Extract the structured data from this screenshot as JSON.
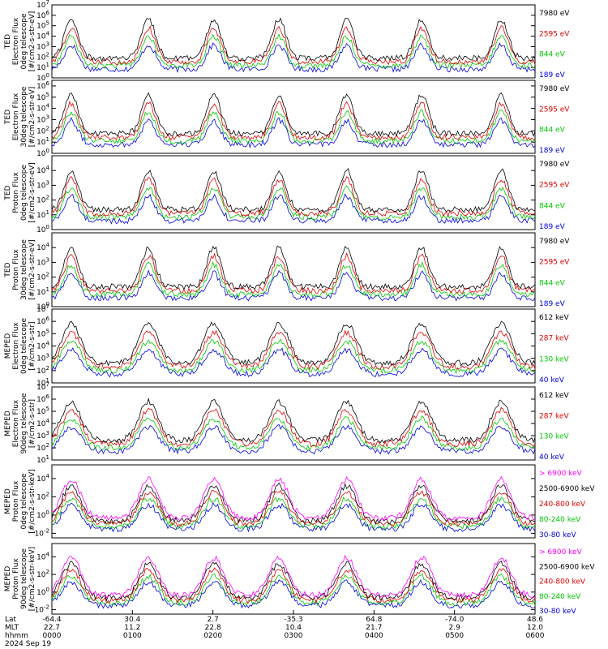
{
  "figure": {
    "date": "2024 Sep 19",
    "xaxis_row_labels": [
      "Lat",
      "MLT",
      "hhmm"
    ],
    "xticks": {
      "lat": [
        "-64.4",
        "30.4",
        "2.7",
        "-35.3",
        "64.8",
        "-74.0",
        "48.6"
      ],
      "mlt": [
        "22.7",
        "11.2",
        "22.8",
        "10.4",
        "21.7",
        "2.9",
        "12.0"
      ],
      "hhmm": [
        "0000",
        "0100",
        "0200",
        "0300",
        "0400",
        "0500",
        "0600"
      ]
    }
  },
  "chart_data": [
    {
      "type": "line",
      "ylabel_lines": [
        "TED",
        "Electron Flux",
        "0deg telescope",
        "[#/cm2-s-str-eV]"
      ],
      "ytick_exponents": [
        0,
        1,
        2,
        3,
        4,
        5,
        6,
        7
      ],
      "ylim_log10": [
        0,
        7
      ],
      "series": [
        {
          "name": "7980 eV",
          "color": "#000000"
        },
        {
          "name": "2595 eV",
          "color": "#e00000"
        },
        {
          "name": "844 eV",
          "color": "#00c800"
        },
        {
          "name": "189 eV",
          "color": "#0000e0"
        }
      ]
    },
    {
      "type": "line",
      "ylabel_lines": [
        "TED",
        "Electron Flux",
        "30deg telescope",
        "[#/cm2-s-str-eV]"
      ],
      "ytick_exponents": [
        0,
        1,
        2,
        3,
        4,
        5,
        6
      ],
      "ylim_log10": [
        0,
        6.5
      ],
      "series": [
        {
          "name": "7980 eV",
          "color": "#000000"
        },
        {
          "name": "2595 eV",
          "color": "#e00000"
        },
        {
          "name": "844 eV",
          "color": "#00c800"
        },
        {
          "name": "189 eV",
          "color": "#0000e0"
        }
      ]
    },
    {
      "type": "line",
      "ylabel_lines": [
        "TED",
        "Proton Flux",
        "0deg telescope",
        "[#/cm2-s-str-eV]"
      ],
      "ytick_exponents": [
        0,
        1,
        2,
        3,
        4
      ],
      "ylim_log10": [
        0,
        5
      ],
      "series": [
        {
          "name": "7980 eV",
          "color": "#000000"
        },
        {
          "name": "2595 eV",
          "color": "#e00000"
        },
        {
          "name": "844 eV",
          "color": "#00c800"
        },
        {
          "name": "189 eV",
          "color": "#0000e0"
        }
      ]
    },
    {
      "type": "line",
      "ylabel_lines": [
        "TED",
        "Proton Flux",
        "30deg telescope",
        "[#/cm2-s-str-eV]"
      ],
      "ytick_exponents": [
        0,
        1,
        2,
        3,
        4
      ],
      "ylim_log10": [
        0,
        5
      ],
      "series": [
        {
          "name": "7980 eV",
          "color": "#000000"
        },
        {
          "name": "2595 eV",
          "color": "#e00000"
        },
        {
          "name": "844 eV",
          "color": "#00c800"
        },
        {
          "name": "189 eV",
          "color": "#0000e0"
        }
      ]
    },
    {
      "type": "line",
      "ylabel_lines": [
        "MEPED",
        "Electron Flux",
        "0deg telescope",
        "[#/cm2-s-str]"
      ],
      "ytick_exponents": [
        1,
        2,
        3,
        4,
        5,
        6,
        7
      ],
      "ylim_log10": [
        1,
        7
      ],
      "series": [
        {
          "name": "612 keV",
          "color": "#000000"
        },
        {
          "name": "287 keV",
          "color": "#e00000"
        },
        {
          "name": "130 keV",
          "color": "#00c800"
        },
        {
          "name": "40 keV",
          "color": "#0000e0"
        }
      ]
    },
    {
      "type": "line",
      "ylabel_lines": [
        "MEPED",
        "Electron Flux",
        "90deg telescope",
        "[#/cm2-s-str]"
      ],
      "ytick_exponents": [
        1,
        2,
        3,
        4,
        5,
        6,
        7
      ],
      "ylim_log10": [
        1,
        7
      ],
      "series": [
        {
          "name": "612 keV",
          "color": "#000000"
        },
        {
          "name": "287 keV",
          "color": "#e00000"
        },
        {
          "name": "130 keV",
          "color": "#00c800"
        },
        {
          "name": "40 keV",
          "color": "#0000e0"
        }
      ]
    },
    {
      "type": "line",
      "ylabel_lines": [
        "MEPED",
        "Proton Flux",
        "0deg telescope",
        "[#/cm2-s-str-keV]"
      ],
      "ytick_exponents": [
        -2,
        0,
        2,
        4
      ],
      "ylim_log10": [
        -2.5,
        5.5
      ],
      "series": [
        {
          "name": "> 6900 keV",
          "color": "#ff00ff"
        },
        {
          "name": "2500-6900 keV",
          "color": "#000000"
        },
        {
          "name": "240-800 keV",
          "color": "#e00000"
        },
        {
          "name": "80-240 keV",
          "color": "#00c800"
        },
        {
          "name": "30-80 keV",
          "color": "#0000e0"
        }
      ]
    },
    {
      "type": "line",
      "ylabel_lines": [
        "MEPED",
        "Proton Flux",
        "90deg telescope",
        "[#/cm2-s-str-keV]"
      ],
      "ytick_exponents": [
        -2,
        0,
        2,
        4
      ],
      "ylim_log10": [
        -2.5,
        5.5
      ],
      "series": [
        {
          "name": "> 6900 keV",
          "color": "#ff00ff"
        },
        {
          "name": "2500-6900 keV",
          "color": "#000000"
        },
        {
          "name": "240-800 keV",
          "color": "#e00000"
        },
        {
          "name": "80-240 keV",
          "color": "#00c800"
        },
        {
          "name": "30-80 keV",
          "color": "#0000e0"
        }
      ]
    }
  ]
}
